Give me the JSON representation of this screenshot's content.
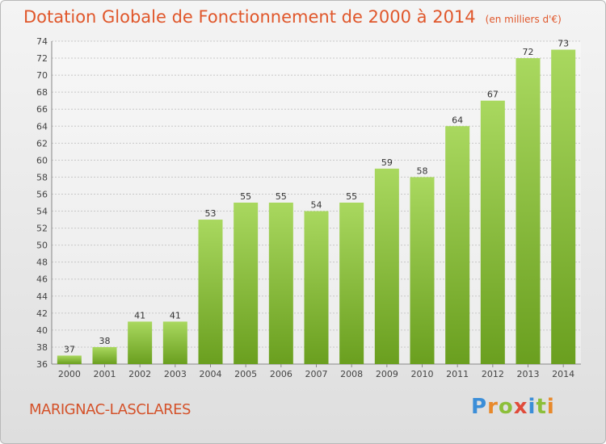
{
  "title": "Dotation Globale de Fonctionnement de 2000 à 2014",
  "subtitle": "(en milliers d'€)",
  "place": "MARIGNAC-LASCLARES",
  "logo": {
    "letters": [
      "P",
      "r",
      "o",
      "x",
      "i",
      "t",
      "i"
    ],
    "colors": [
      "#3b8ed8",
      "#e8892b",
      "#8cbf3a",
      "#e04b3a",
      "#3b8ed8",
      "#8cbf3a",
      "#e8892b"
    ]
  },
  "colors": {
    "title": "#e0572b",
    "bar_light": "#a9d85f",
    "bar_dark": "#6a9f1f",
    "grid": "#c8c8c8"
  },
  "chart_data": {
    "type": "bar",
    "title": "Dotation Globale de Fonctionnement de 2000 à 2014",
    "subtitle": "(en milliers d'€)",
    "xlabel": "",
    "ylabel": "",
    "ylim": [
      36,
      74
    ],
    "grid": true,
    "yticks": [
      36,
      38,
      40,
      42,
      44,
      46,
      48,
      50,
      52,
      54,
      56,
      58,
      60,
      62,
      64,
      66,
      68,
      70,
      72,
      74
    ],
    "categories": [
      "2000",
      "2001",
      "2002",
      "2003",
      "2004",
      "2005",
      "2006",
      "2007",
      "2008",
      "2009",
      "2010",
      "2011",
      "2012",
      "2013",
      "2014"
    ],
    "values": [
      37,
      38,
      41,
      41,
      53,
      55,
      55,
      54,
      55,
      59,
      58,
      64,
      67,
      72,
      73
    ]
  }
}
